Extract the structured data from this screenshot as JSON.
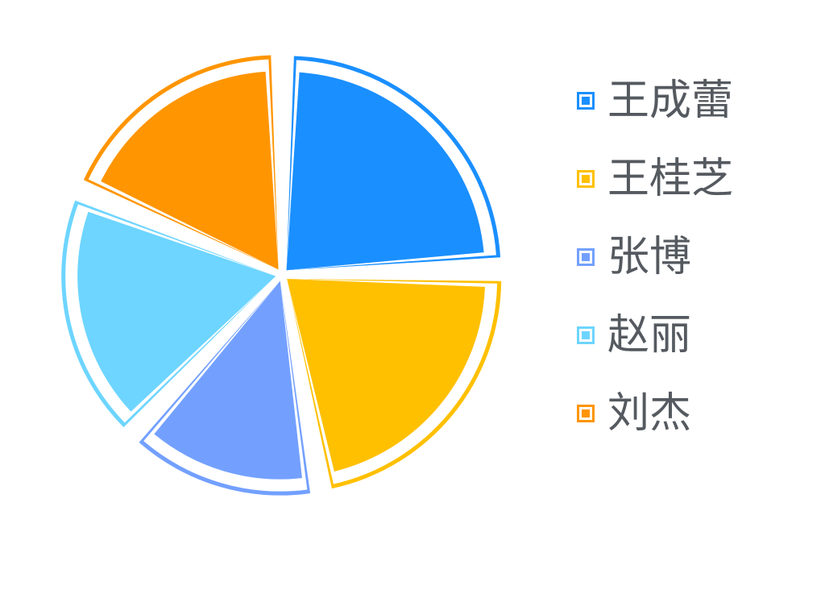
{
  "chart_data": {
    "type": "pie",
    "slices": [
      {
        "name": "王成蕾",
        "value": 24.6,
        "color": "#1a8fff"
      },
      {
        "name": "王桂芝",
        "value": 22.6,
        "color": "#ffc000"
      },
      {
        "name": "张博",
        "value": 14.8,
        "color": "#73a0ff"
      },
      {
        "name": "赵丽",
        "value": 19.3,
        "color": "#6dd5ff"
      },
      {
        "name": "刘杰",
        "value": 18.7,
        "color": "#ff9500"
      }
    ],
    "legend": {
      "placement": "right"
    }
  }
}
